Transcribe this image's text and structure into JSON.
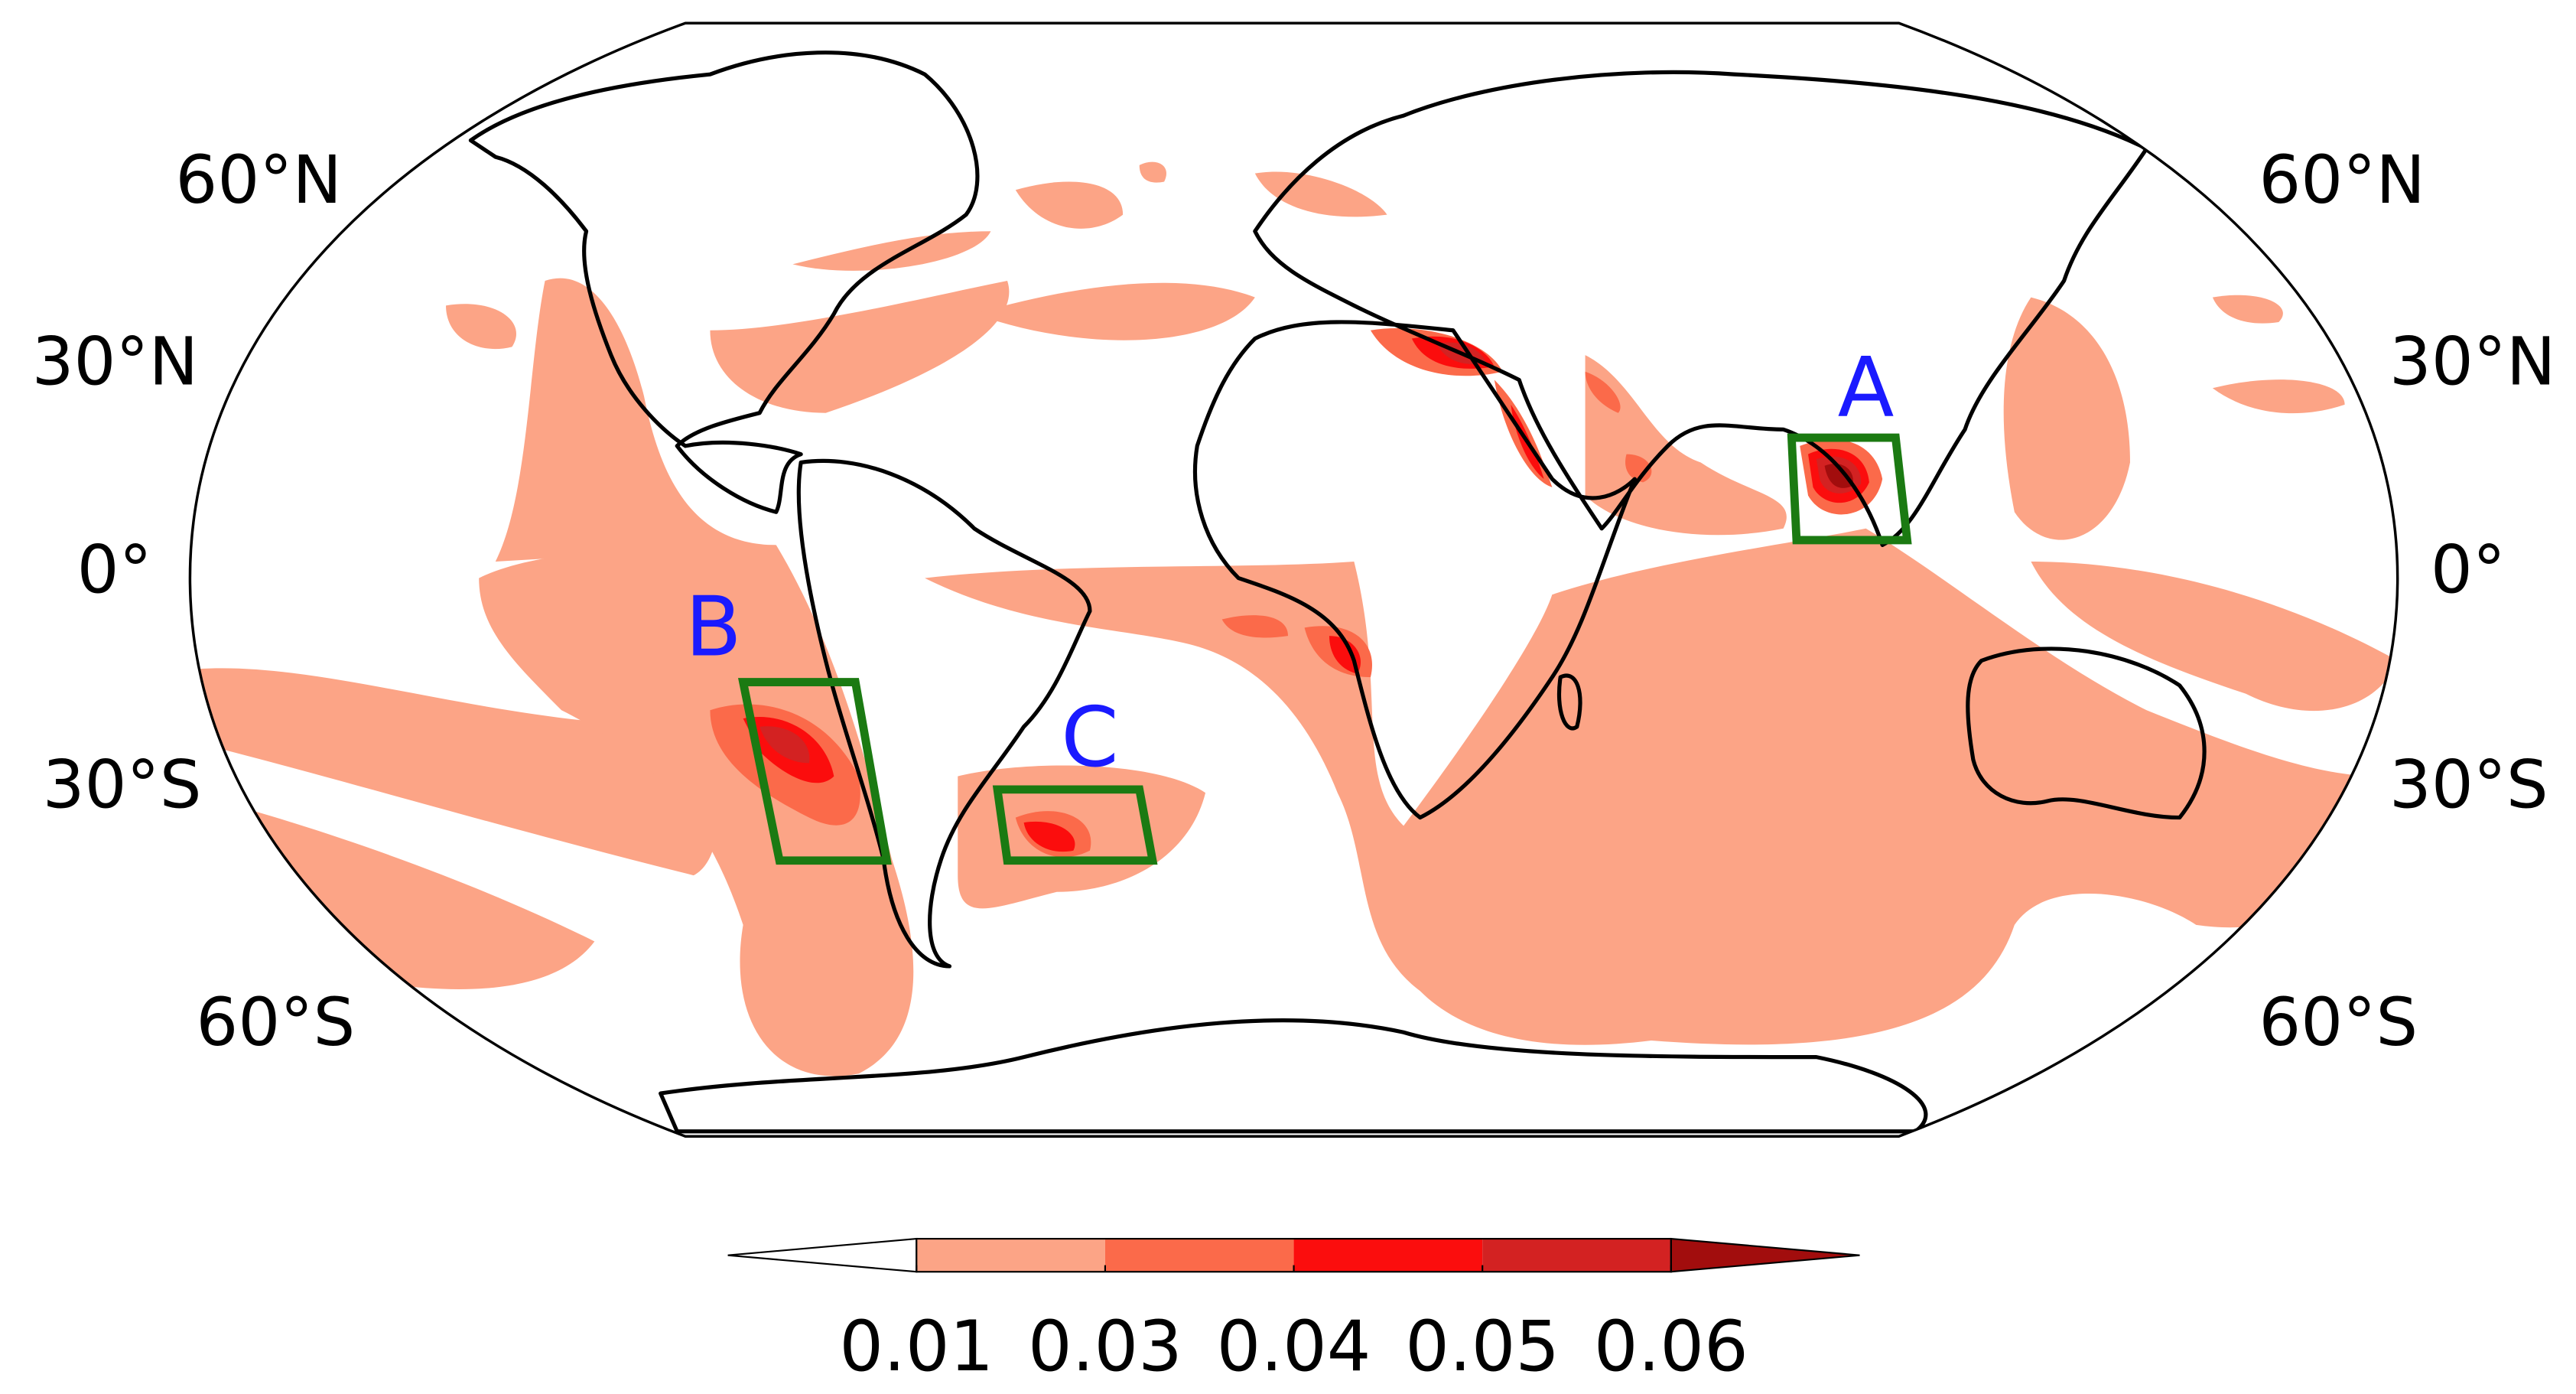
{
  "map": {
    "lat_labels_left": [
      "60°N",
      "30°N",
      "0°",
      "30°S",
      "60°S"
    ],
    "lat_labels_right": [
      "60°N",
      "30°N",
      "0°",
      "30°S",
      "60°S"
    ],
    "regions": [
      "A",
      "B",
      "C"
    ]
  },
  "colorbar": {
    "ticks": [
      0.01,
      0.03,
      0.04,
      0.05,
      0.06
    ],
    "colors": [
      "#ffffff",
      "#fca486",
      "#fb6a4a",
      "#fb0d0d",
      "#d32222",
      "#a20d0d"
    ]
  }
}
